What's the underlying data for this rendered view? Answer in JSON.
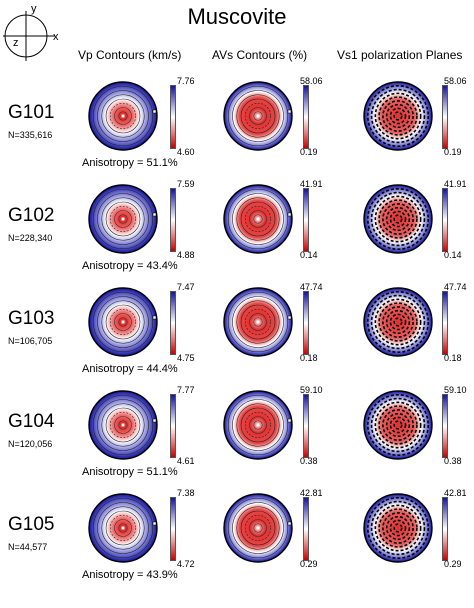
{
  "title": "Muscovite",
  "axis_labels": {
    "y": "y",
    "z": "z",
    "x": "x"
  },
  "column_headers": [
    "Vp  Contours (km/s)",
    "AVs Contours (%)",
    "Vs1 polarization Planes"
  ],
  "samples": [
    {
      "name": "G101",
      "n": "N=335,616",
      "anisotropy": "Anisotropy = 51.1%",
      "vp": {
        "max": "7.76",
        "min": "4.60"
      },
      "avs": {
        "max": "58.06",
        "min": "0.19"
      },
      "vs1": {
        "max": "58.06",
        "min": "0.19"
      }
    },
    {
      "name": "G102",
      "n": "N=228,340",
      "anisotropy": "Anisotropy = 43.4%",
      "vp": {
        "max": "7.59",
        "min": "4.88"
      },
      "avs": {
        "max": "41.91",
        "min": "0.14"
      },
      "vs1": {
        "max": "41.91",
        "min": "0.14"
      }
    },
    {
      "name": "G103",
      "n": "N=106,705",
      "anisotropy": "Anisotropy = 44.4%",
      "vp": {
        "max": "7.47",
        "min": "4.75"
      },
      "avs": {
        "max": "47.74",
        "min": "0.18"
      },
      "vs1": {
        "max": "47.74",
        "min": "0.18"
      }
    },
    {
      "name": "G104",
      "n": "N=120,056",
      "anisotropy": "Anisotropy = 51.1%",
      "vp": {
        "max": "7.77",
        "min": "4.61"
      },
      "avs": {
        "max": "59.10",
        "min": "0.38"
      },
      "vs1": {
        "max": "59.10",
        "min": "0.38"
      }
    },
    {
      "name": "G105",
      "n": "N=44,577",
      "anisotropy": "Anisotropy = 43.9%",
      "vp": {
        "max": "7.38",
        "min": "4.72"
      },
      "avs": {
        "max": "42.81",
        "min": "0.29"
      },
      "vs1": {
        "max": "42.81",
        "min": "0.29"
      }
    }
  ],
  "colors": {
    "high": "#1010a0",
    "low": "#c00000",
    "mid": "#ffffff"
  }
}
